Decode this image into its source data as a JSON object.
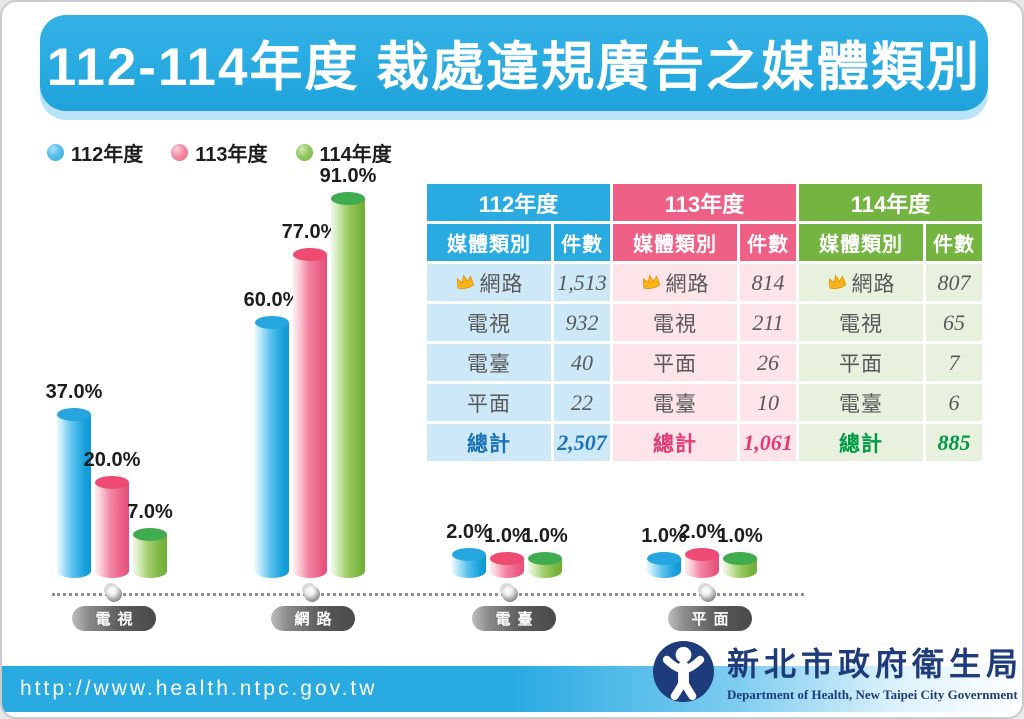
{
  "title": "112-114年度 裁處違規廣告之媒體類別",
  "legend": [
    {
      "label": "112年度",
      "color": "#29abe2"
    },
    {
      "label": "113年度",
      "color": "#ee6488"
    },
    {
      "label": "114年度",
      "color": "#6fb23c"
    }
  ],
  "chart_data": {
    "type": "bar",
    "title": "112-114年度 裁處違規廣告之媒體類別",
    "categories": [
      "電視",
      "網路",
      "電臺",
      "平面"
    ],
    "series": [
      {
        "name": "112年度",
        "color": "#29abe2",
        "values": [
          37,
          60,
          2,
          1
        ],
        "labels": [
          "37.0%",
          "60.0%",
          "2.0%",
          "1.0%"
        ]
      },
      {
        "name": "113年度",
        "color": "#ee6488",
        "values": [
          20,
          77,
          1,
          2
        ],
        "labels": [
          "20.0%",
          "77.0%",
          "1.0%",
          "2.0%"
        ]
      },
      {
        "name": "114年度",
        "color": "#6fb23c",
        "values": [
          7,
          91,
          1,
          1
        ],
        "labels": [
          "7.0%",
          "91.0%",
          "1.0%",
          "1.0%"
        ]
      }
    ],
    "unit": "%",
    "ylim": [
      0,
      100
    ],
    "grid": false,
    "legend_position": "top-left"
  },
  "table": {
    "col_headers": [
      "媒體類別",
      "件數"
    ],
    "years": [
      {
        "label": "112年度",
        "rows": [
          {
            "cat": "網路",
            "value": "1,513"
          },
          {
            "cat": "電視",
            "value": "932"
          },
          {
            "cat": "電臺",
            "value": "40"
          },
          {
            "cat": "平面",
            "value": "22"
          }
        ],
        "total_label": "總計",
        "total": "2,507"
      },
      {
        "label": "113年度",
        "rows": [
          {
            "cat": "網路",
            "value": "814"
          },
          {
            "cat": "電視",
            "value": "211"
          },
          {
            "cat": "平面",
            "value": "26"
          },
          {
            "cat": "電臺",
            "value": "10"
          }
        ],
        "total_label": "總計",
        "total": "1,061"
      },
      {
        "label": "114年度",
        "rows": [
          {
            "cat": "網路",
            "value": "807"
          },
          {
            "cat": "電視",
            "value": "65"
          },
          {
            "cat": "平面",
            "value": "7"
          },
          {
            "cat": "電臺",
            "value": "6"
          }
        ],
        "total_label": "總計",
        "total": "885"
      }
    ]
  },
  "footer": {
    "url": "http://www.health.ntpc.gov.tw",
    "org_zh": "新北市政府衛生局",
    "org_en": "Department of Health, New Taipei City Government"
  }
}
